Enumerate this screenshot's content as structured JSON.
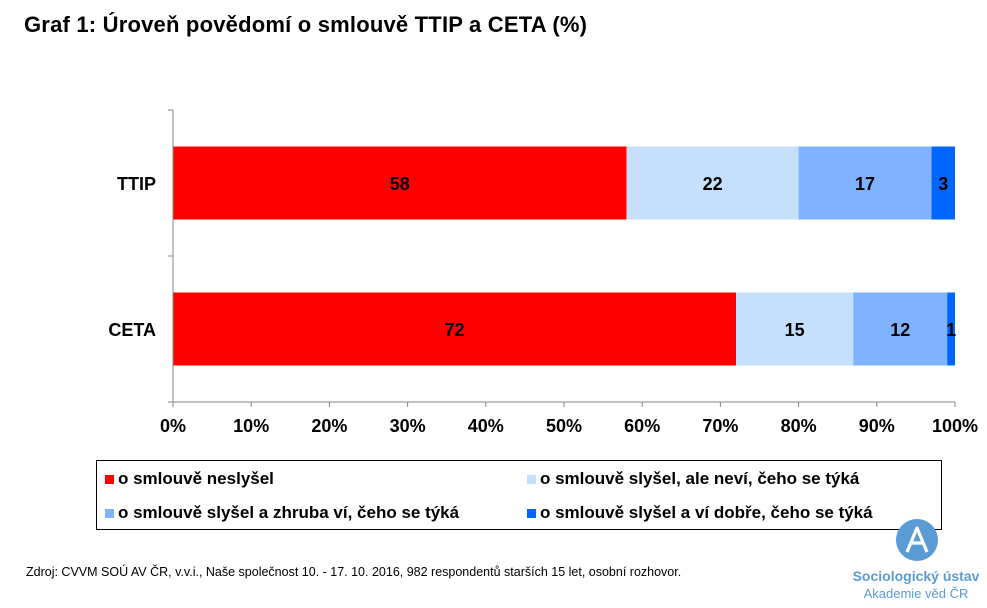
{
  "title": "Graf 1: Úroveň povědomí o smlouvě TTIP a CETA (%)",
  "chart_data": {
    "type": "bar",
    "orientation": "horizontal",
    "stacked": true,
    "percent_stacked": true,
    "categories": [
      "TTIP",
      "CETA"
    ],
    "series": [
      {
        "name": "o smlouvě neslyšel",
        "color": "#ff0000",
        "values": [
          58,
          72
        ]
      },
      {
        "name": "o smlouvě slyšel, ale neví, čeho se týká",
        "color": "#c6dffc",
        "values": [
          22,
          15
        ]
      },
      {
        "name": "o smlouvě slyšel a zhruba ví, čeho se týká",
        "color": "#7fb2ff",
        "values": [
          17,
          12
        ]
      },
      {
        "name": "o smlouvě slyšel a ví dobře, čeho se týká",
        "color": "#0066ff",
        "values": [
          3,
          1
        ]
      }
    ],
    "xlim": [
      0,
      100
    ],
    "x_ticks": [
      "0%",
      "10%",
      "20%",
      "30%",
      "40%",
      "50%",
      "60%",
      "70%",
      "80%",
      "90%",
      "100%"
    ],
    "grid": false,
    "legend_position": "bottom"
  },
  "source": "Zdroj: CVVM SOÚ AV ČR, v.v.i., Naše společnost 10. - 17. 10. 2016, 982 respondentů starších 15 let, osobní rozhovor.",
  "logo": {
    "name": "Sociologický ústav",
    "sub": "Akademie věd ČR",
    "color": "#5b9bd5"
  }
}
